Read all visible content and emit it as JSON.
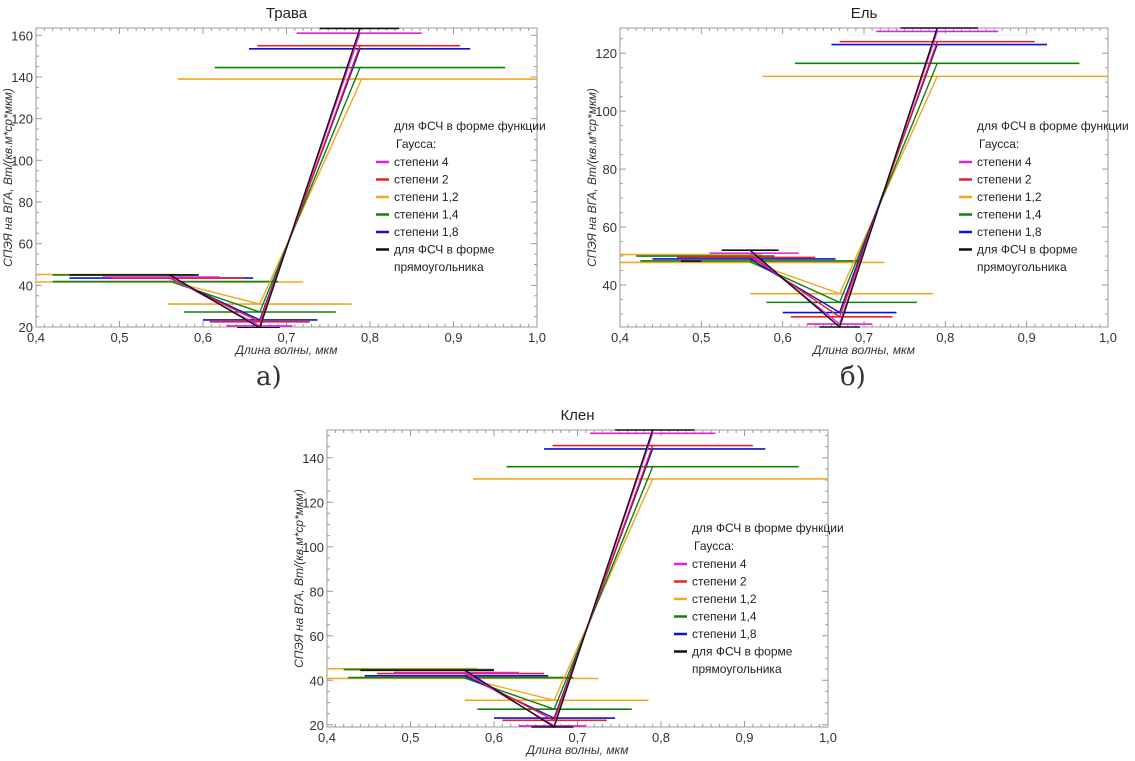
{
  "legend": {
    "title_line1": "для ФСЧ в форме функции",
    "title_line2": "Гаусса:",
    "items": [
      {
        "label": "степени 4",
        "color": "#e020e0"
      },
      {
        "label": "степени 2",
        "color": "#e8202a"
      },
      {
        "label": "степени 1,2",
        "color": "#f0a820"
      },
      {
        "label": "степени 1,4",
        "color": "#108010"
      },
      {
        "label": "степени 1,8",
        "color": "#1010d0"
      },
      {
        "label": "для ФСЧ в форме",
        "label2": "прямоугольника",
        "color": "#111111"
      }
    ]
  },
  "captions": {
    "a": "а)",
    "b": "б)"
  },
  "chart_data": [
    {
      "type": "line",
      "title": "Трава",
      "xlabel": "Длина волны, мкм",
      "ylabel": "СПЭЯ на ВГА, Вт/(кв.м*ср*мкм)",
      "xlim": [
        0.4,
        1.0
      ],
      "ylim": [
        20,
        163.5
      ],
      "xticks": [
        0.4,
        0.5,
        0.6,
        0.7,
        0.8,
        0.9,
        1.0
      ],
      "xtick_labels": [
        "0,4",
        "0,5",
        "0,6",
        "0,7",
        "0,8",
        "0,9",
        "1,0"
      ],
      "yticks": [
        20,
        40,
        60,
        80,
        100,
        120,
        140,
        160
      ],
      "ytick_labels": [
        "20",
        "40",
        "60",
        "80",
        "100",
        "120",
        "140",
        "160"
      ],
      "legend_position": "right",
      "series": [
        {
          "name": "степени 4",
          "color": "#e020e0",
          "points": [
            [
              0.56,
              44
            ],
            [
              0.668,
              20.5
            ],
            [
              0.788,
              161
            ]
          ],
          "spans": [
            [
              0.48,
              0.62,
              44
            ],
            [
              0.628,
              0.707,
              20.5
            ],
            [
              0.712,
              0.862,
              161
            ]
          ]
        },
        {
          "name": "степени 2",
          "color": "#e8202a",
          "points": [
            [
              0.56,
              43.5
            ],
            [
              0.668,
              22.5
            ],
            [
              0.788,
              155
            ]
          ],
          "spans": [
            [
              0.49,
              0.65,
              43.5
            ],
            [
              0.608,
              0.728,
              22.5
            ],
            [
              0.665,
              0.908,
              155
            ]
          ]
        },
        {
          "name": "степени 1,2",
          "color": "#f0a820",
          "points": [
            [
              0.56,
              42
            ],
            [
              0.668,
              31
            ],
            [
              0.79,
              139
            ]
          ],
          "spans": [
            [
              0.4,
              0.57,
              45.2
            ],
            [
              0.4,
              0.72,
              41.6
            ],
            [
              0.558,
              0.778,
              31
            ],
            [
              0.57,
              1.0,
              139
            ]
          ]
        },
        {
          "name": "степени 1,4",
          "color": "#108010",
          "points": [
            [
              0.56,
              42
            ],
            [
              0.668,
              27.2
            ],
            [
              0.788,
              144.5
            ]
          ],
          "spans": [
            [
              0.42,
              0.59,
              45
            ],
            [
              0.42,
              0.69,
              41.8
            ],
            [
              0.577,
              0.759,
              27.2
            ],
            [
              0.614,
              0.962,
              144.5
            ]
          ]
        },
        {
          "name": "степени 1,8",
          "color": "#1010d0",
          "points": [
            [
              0.56,
              43.5
            ],
            [
              0.668,
              23.4
            ],
            [
              0.788,
              153.5
            ]
          ],
          "spans": [
            [
              0.44,
              0.66,
              43.5
            ],
            [
              0.6,
              0.737,
              23.4
            ],
            [
              0.655,
              0.92,
              153.5
            ]
          ]
        },
        {
          "name": "для ФСЧ в форме прямоугольника",
          "color": "#111111",
          "points": [
            [
              0.56,
              45
            ],
            [
              0.668,
              19.6
            ],
            [
              0.788,
              163.3
            ]
          ],
          "spans": [
            [
              0.44,
              0.595,
              45
            ],
            [
              0.641,
              0.692,
              19.6
            ],
            [
              0.74,
              0.835,
              163.3
            ]
          ]
        }
      ]
    },
    {
      "type": "line",
      "title": "Ель",
      "xlabel": "Длина волны, мкм",
      "ylabel": "СПЭЯ на ВГА, Вт/(кв.м*ср*мкм)",
      "xlim": [
        0.4,
        1.0
      ],
      "ylim": [
        25.5,
        128.7
      ],
      "xticks": [
        0.4,
        0.5,
        0.6,
        0.7,
        0.8,
        0.9,
        1.0
      ],
      "xtick_labels": [
        "0,4",
        "0,5",
        "0,6",
        "0,7",
        "0,8",
        "0,9",
        "1,0"
      ],
      "yticks": [
        40,
        60,
        80,
        100,
        120
      ],
      "ytick_labels": [
        "40",
        "60",
        "80",
        "100",
        "120"
      ],
      "legend_position": "right",
      "series": [
        {
          "name": "степени 4",
          "color": "#e020e0",
          "points": [
            [
              0.56,
              51
            ],
            [
              0.67,
              26.5
            ],
            [
              0.79,
              127.5
            ]
          ],
          "spans": [
            [
              0.51,
              0.62,
              51
            ],
            [
              0.63,
              0.71,
              26.5
            ],
            [
              0.715,
              0.865,
              127.5
            ]
          ]
        },
        {
          "name": "степени 2",
          "color": "#e8202a",
          "points": [
            [
              0.56,
              50
            ],
            [
              0.67,
              29
            ],
            [
              0.79,
              124
            ]
          ],
          "spans": [
            [
              0.47,
              0.64,
              49.5
            ],
            [
              0.61,
              0.735,
              29
            ],
            [
              0.67,
              0.91,
              124
            ]
          ]
        },
        {
          "name": "степени 1,2",
          "color": "#f0a820",
          "points": [
            [
              0.56,
              48
            ],
            [
              0.67,
              37
            ],
            [
              0.79,
              112
            ]
          ],
          "spans": [
            [
              0.4,
              0.575,
              50.5
            ],
            [
              0.4,
              0.725,
              47.8
            ],
            [
              0.56,
              0.785,
              37
            ],
            [
              0.575,
              1.0,
              112
            ]
          ]
        },
        {
          "name": "степени 1,4",
          "color": "#108010",
          "points": [
            [
              0.56,
              48
            ],
            [
              0.67,
              34
            ],
            [
              0.79,
              116.5
            ]
          ],
          "spans": [
            [
              0.42,
              0.59,
              50
            ],
            [
              0.425,
              0.695,
              48.3
            ],
            [
              0.58,
              0.765,
              34
            ],
            [
              0.615,
              0.965,
              116.5
            ]
          ]
        },
        {
          "name": "степени 1,8",
          "color": "#1010d0",
          "points": [
            [
              0.56,
              49
            ],
            [
              0.67,
              30.5
            ],
            [
              0.79,
              123
            ]
          ],
          "spans": [
            [
              0.44,
              0.665,
              49
            ],
            [
              0.6,
              0.74,
              30.5
            ],
            [
              0.66,
              0.925,
              123
            ]
          ]
        },
        {
          "name": "для ФСЧ в форме прямоугольника",
          "color": "#111111",
          "points": [
            [
              0.56,
              52
            ],
            [
              0.67,
              25.5
            ],
            [
              0.79,
              128.7
            ]
          ],
          "spans": [
            [
              0.525,
              0.595,
              52
            ],
            [
              0.475,
              0.5,
              48.2
            ],
            [
              0.645,
              0.695,
              25.5
            ],
            [
              0.745,
              0.84,
              128.7
            ]
          ]
        }
      ]
    },
    {
      "type": "line",
      "title": "Клен",
      "xlabel": "Длина волны, мкм",
      "ylabel": "СПЭЯ на ВГА, Вт/(кв.м*ср*мкм)",
      "xlim": [
        0.4,
        1.0
      ],
      "ylim": [
        19,
        152.5
      ],
      "xticks": [
        0.4,
        0.5,
        0.6,
        0.7,
        0.8,
        0.9,
        1.0
      ],
      "xtick_labels": [
        "0,4",
        "0,5",
        "0,6",
        "0,7",
        "0,8",
        "0,9",
        "1,0"
      ],
      "yticks": [
        20,
        40,
        60,
        80,
        100,
        120,
        140
      ],
      "ytick_labels": [
        "20",
        "40",
        "60",
        "80",
        "100",
        "120",
        "140"
      ],
      "legend_position": "right",
      "series": [
        {
          "name": "степени 4",
          "color": "#e020e0",
          "points": [
            [
              0.565,
              43.5
            ],
            [
              0.672,
              19.5
            ],
            [
              0.79,
              151
            ]
          ],
          "spans": [
            [
              0.48,
              0.63,
              43.5
            ],
            [
              0.63,
              0.71,
              19.5
            ],
            [
              0.715,
              0.865,
              151
            ]
          ]
        },
        {
          "name": "степени 2",
          "color": "#e8202a",
          "points": [
            [
              0.565,
              43
            ],
            [
              0.672,
              22
            ],
            [
              0.79,
              145.5
            ]
          ],
          "spans": [
            [
              0.46,
              0.66,
              43
            ],
            [
              0.61,
              0.735,
              22
            ],
            [
              0.67,
              0.91,
              145.5
            ]
          ]
        },
        {
          "name": "степени 1,2",
          "color": "#f0a820",
          "points": [
            [
              0.565,
              41
            ],
            [
              0.672,
              31
            ],
            [
              0.79,
              130.5
            ]
          ],
          "spans": [
            [
              0.4,
              0.58,
              45.2
            ],
            [
              0.4,
              0.725,
              40.8
            ],
            [
              0.565,
              0.785,
              31
            ],
            [
              0.575,
              1.0,
              130.5
            ]
          ]
        },
        {
          "name": "степени 1,4",
          "color": "#108010",
          "points": [
            [
              0.565,
              41
            ],
            [
              0.672,
              27
            ],
            [
              0.79,
              136
            ]
          ],
          "spans": [
            [
              0.42,
              0.6,
              44.8
            ],
            [
              0.425,
              0.695,
              41.2
            ],
            [
              0.58,
              0.765,
              27
            ],
            [
              0.615,
              0.965,
              136
            ]
          ]
        },
        {
          "name": "степени 1,8",
          "color": "#1010d0",
          "points": [
            [
              0.565,
              42
            ],
            [
              0.672,
              23
            ],
            [
              0.79,
              144
            ]
          ],
          "spans": [
            [
              0.445,
              0.665,
              42
            ],
            [
              0.6,
              0.745,
              23
            ],
            [
              0.66,
              0.925,
              144
            ]
          ]
        },
        {
          "name": "для ФСЧ в форме прямоугольника",
          "color": "#111111",
          "points": [
            [
              0.565,
              44.5
            ],
            [
              0.672,
              19
            ],
            [
              0.79,
              152.5
            ]
          ],
          "spans": [
            [
              0.44,
              0.6,
              44.5
            ],
            [
              0.645,
              0.695,
              19
            ],
            [
              0.745,
              0.84,
              152.5
            ]
          ]
        }
      ]
    }
  ]
}
